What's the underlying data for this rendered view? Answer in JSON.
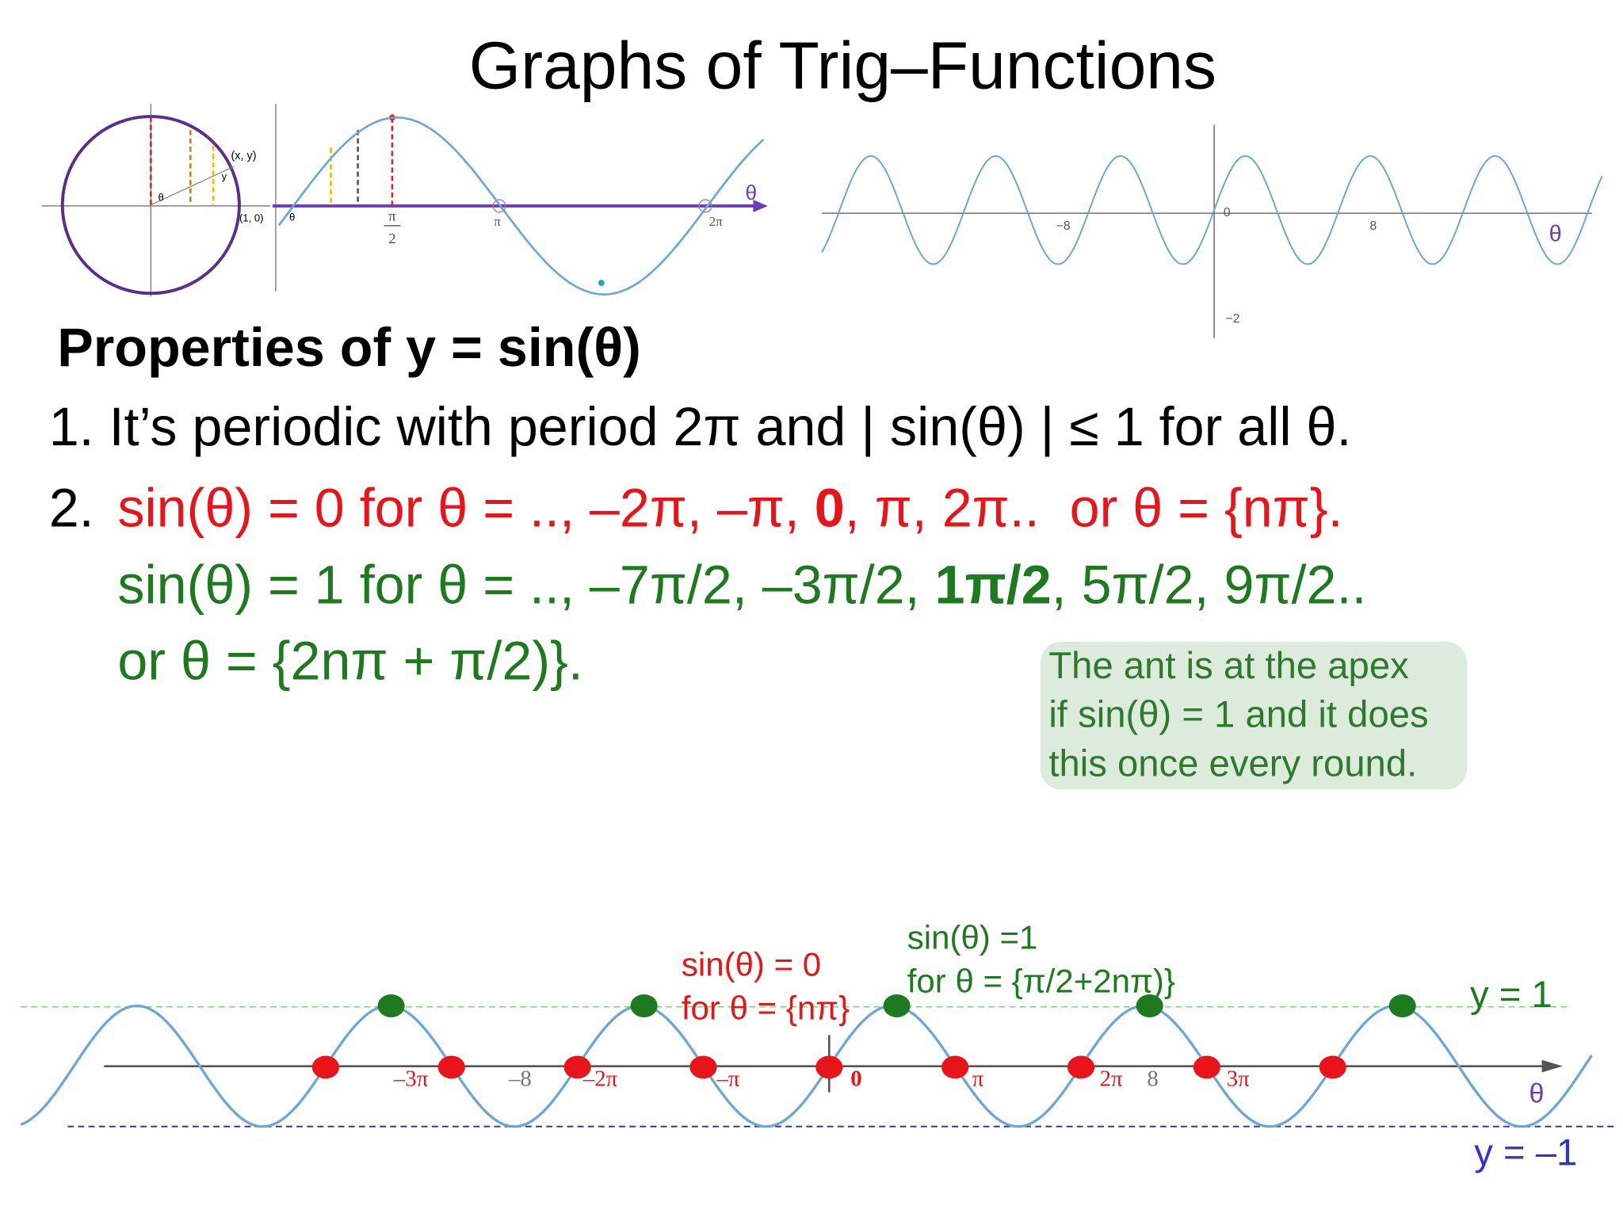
{
  "title": "Graphs of Trig–Functions",
  "unit_circle_graph": {
    "point_label": "(x, y)",
    "start_label": "(1, 0)",
    "angle_label": "θ",
    "y_label": "y",
    "origin_label": "θ",
    "half_pi_numerator": "π",
    "half_pi_denominator": "2",
    "pi_label": "π",
    "two_pi_label": "2π",
    "axis_label": "θ"
  },
  "sine_graph": {
    "x_tick_labels": [
      "−8",
      "8"
    ],
    "origin_label": "0",
    "y_tick_label": "−2",
    "axis_label": "θ"
  },
  "properties": {
    "heading": "Properties of y = sin(θ)",
    "item1": "1. It’s periodic with period 2π and | sin(θ) | ≤ 1 for all θ.",
    "item2": {
      "number": "2.",
      "zeros": {
        "before": "sin(θ) = 0 for θ = .., –2π, –π, ",
        "bold": "0",
        "after": ", π, 2π..  or θ = {nπ}."
      },
      "ones": {
        "before": "sin(θ) = 1 for θ = .., –7π/2, –3π/2, ",
        "bold": "1π/2",
        "after": ", 5π/2, 9π/2.."
      },
      "ones_set": "or θ = {2nπ + π/2)}."
    }
  },
  "note": {
    "lines": [
      "The ant is at the apex",
      "if sin(θ) = 1 and it does",
      "this once every round."
    ]
  },
  "bottom_graph": {
    "zero_label": [
      "sin(θ) = 0",
      "for θ = {nπ}"
    ],
    "one_label": [
      "sin(θ) =1",
      "for θ = {π/2+2nπ)}"
    ],
    "y_one": "y = 1",
    "y_minus_one": "y = –1",
    "tick_labels": [
      "–3π",
      "–8",
      "–2π",
      "–π",
      "0",
      "π",
      "2π",
      "8",
      "3π"
    ],
    "axis_label": "θ"
  }
}
